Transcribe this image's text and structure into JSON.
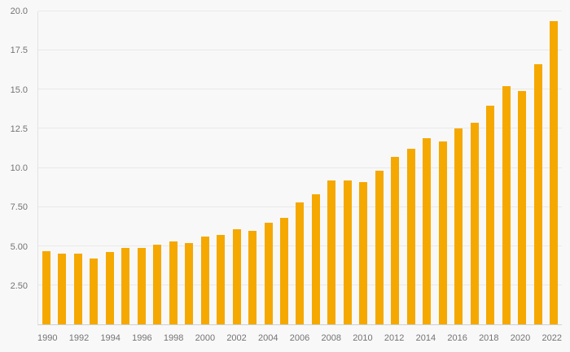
{
  "chart_data": {
    "type": "bar",
    "title": "",
    "xlabel": "",
    "ylabel": "",
    "categories": [
      "1990",
      "1991",
      "1992",
      "1993",
      "1994",
      "1995",
      "1996",
      "1997",
      "1998",
      "1999",
      "2000",
      "2001",
      "2002",
      "2003",
      "2004",
      "2005",
      "2006",
      "2007",
      "2008",
      "2009",
      "2010",
      "2011",
      "2012",
      "2013",
      "2014",
      "2015",
      "2016",
      "2017",
      "2018",
      "2019",
      "2020",
      "2021",
      "2022"
    ],
    "values": [
      4.7,
      4.5,
      4.5,
      4.2,
      4.6,
      4.9,
      4.9,
      5.1,
      5.3,
      5.2,
      5.6,
      5.7,
      6.1,
      6.0,
      6.5,
      6.8,
      7.8,
      8.3,
      9.2,
      9.2,
      9.1,
      9.8,
      10.7,
      11.2,
      11.9,
      11.7,
      12.5,
      12.9,
      14.0,
      15.2,
      14.9,
      16.6,
      19.4
    ],
    "ylim": [
      0,
      20
    ],
    "yticks": [
      2.5,
      5.0,
      7.5,
      10.0,
      12.5,
      15.0,
      17.5,
      20.0
    ],
    "ytick_labels": [
      "2.50",
      "5.00",
      "7.50",
      "10.0",
      "12.5",
      "15.0",
      "17.5",
      "20.0"
    ],
    "xtick_labels": [
      "1990",
      "1992",
      "1994",
      "1996",
      "1998",
      "2000",
      "2002",
      "2004",
      "2006",
      "2008",
      "2010",
      "2012",
      "2014",
      "2016",
      "2018",
      "2020",
      "2022"
    ],
    "grid": true,
    "legend": "none",
    "bar_color": "#F5A800",
    "background_color": "#f8f8f8",
    "gridline_color": "#e9e9e9",
    "tick_text_color": "#737373"
  }
}
